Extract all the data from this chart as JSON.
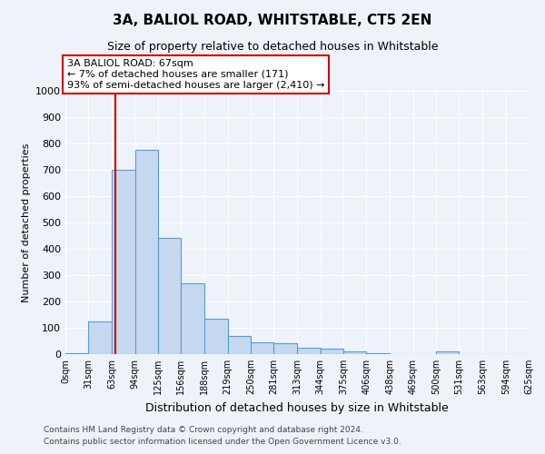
{
  "title": "3A, BALIOL ROAD, WHITSTABLE, CT5 2EN",
  "subtitle": "Size of property relative to detached houses in Whitstable",
  "xlabel": "Distribution of detached houses by size in Whitstable",
  "ylabel": "Number of detached properties",
  "bins": [
    0,
    31,
    63,
    94,
    125,
    156,
    188,
    219,
    250,
    281,
    313,
    344,
    375,
    406,
    438,
    469,
    500,
    531,
    563,
    594,
    625
  ],
  "values": [
    5,
    125,
    700,
    775,
    440,
    270,
    135,
    70,
    45,
    40,
    25,
    20,
    10,
    5,
    0,
    0,
    10,
    0,
    0,
    0
  ],
  "bar_color": "#c5d8f0",
  "bar_edge_color": "#5b9bd5",
  "property_size": 67,
  "property_line_color": "#cc0000",
  "ylim": [
    0,
    1000
  ],
  "yticks": [
    0,
    100,
    200,
    300,
    400,
    500,
    600,
    700,
    800,
    900,
    1000
  ],
  "annotation_text": "3A BALIOL ROAD: 67sqm\n← 7% of detached houses are smaller (171)\n93% of semi-detached houses are larger (2,410) →",
  "annotation_box_color": "#ffffff",
  "annotation_box_edge_color": "#cc0000",
  "footnote1": "Contains HM Land Registry data © Crown copyright and database right 2024.",
  "footnote2": "Contains public sector information licensed under the Open Government Licence v3.0.",
  "background_color": "#eef2f9",
  "plot_background_color": "#eef2f9",
  "grid_color": "#ffffff"
}
